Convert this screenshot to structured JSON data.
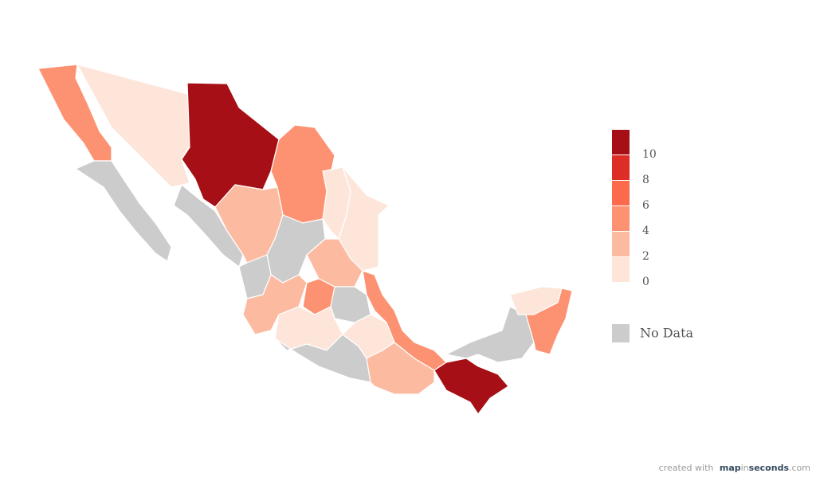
{
  "map": {
    "regions": [
      4,
      null,
      0,
      10,
      4,
      null,
      2,
      0,
      0,
      null,
      2,
      null,
      2,
      4,
      null,
      4,
      0,
      null,
      0,
      2,
      null,
      10,
      0,
      4
    ],
    "legend": {
      "ticks": [
        0,
        2,
        4,
        6,
        8,
        10
      ],
      "colors": [
        "#fee5d9",
        "#fcbba1",
        "#fc9272",
        "#fb6a4a",
        "#de2d26",
        "#a50f15"
      ],
      "no_data_label": "No Data",
      "no_data_color": "#cccccc"
    },
    "credit": {
      "prefix": "created with",
      "brand": [
        "map",
        "in",
        "seconds"
      ],
      "suffix": ".com"
    }
  }
}
